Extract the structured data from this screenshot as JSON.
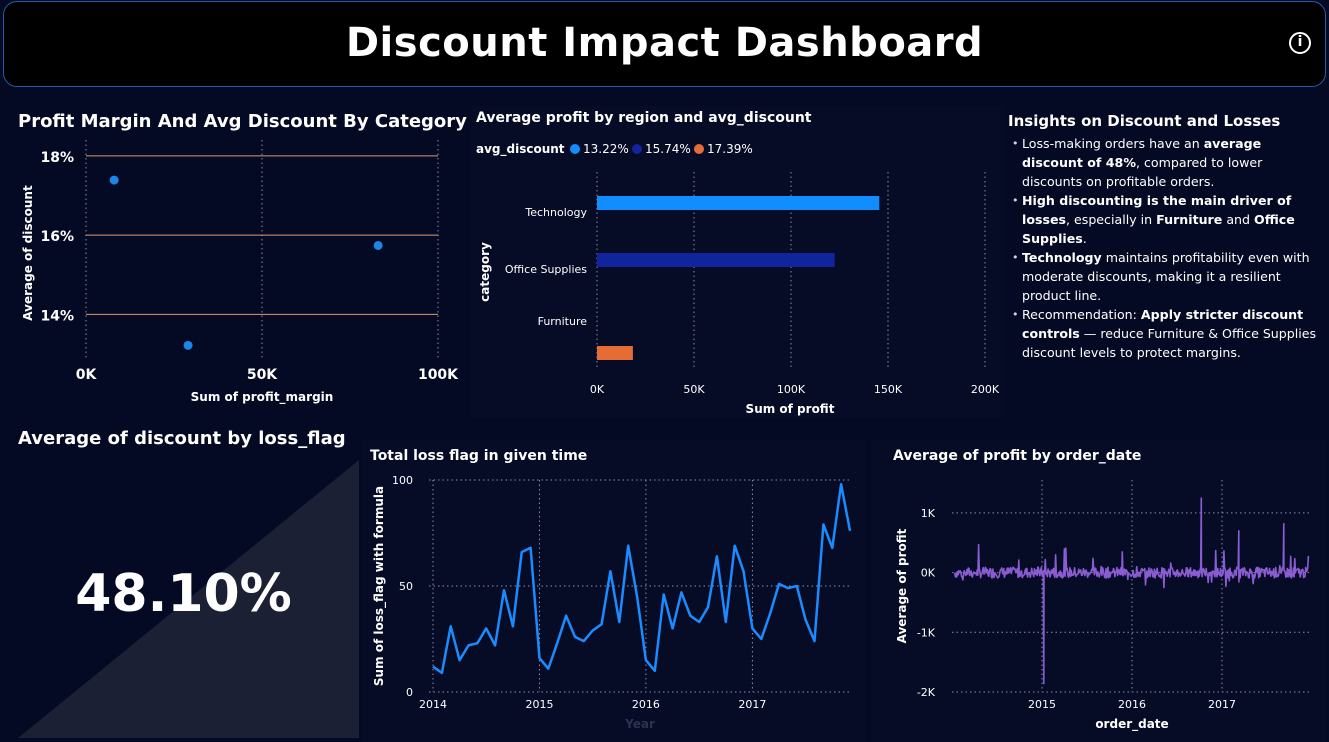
{
  "header": {
    "title": "Discount Impact Dashboard",
    "info_icon": "info-icon"
  },
  "scatter_panel": {
    "title": "Profit Margin And Avg Discount By Category",
    "chart_data": {
      "type": "scatter",
      "title": "Profit Margin And Avg Discount By Category",
      "xlabel": "Sum of profit_margin",
      "ylabel": "Average of discount",
      "x_ticks": [
        "0K",
        "50K",
        "100K"
      ],
      "y_ticks": [
        "18%",
        "16%",
        "14%"
      ],
      "xlim": [
        0,
        100000
      ],
      "ylim": [
        12.9,
        18.2
      ],
      "points": [
        {
          "x": 8000,
          "y": 17.39
        },
        {
          "x": 29000,
          "y": 13.22
        },
        {
          "x": 83000,
          "y": 15.74
        }
      ],
      "color": "#1a86e8"
    }
  },
  "bar_panel": {
    "title": "Average profit by region and avg_discount",
    "chart_data": {
      "type": "bar",
      "orientation": "horizontal",
      "title": "Average profit by region and avg_discount",
      "legend_title": "avg_discount",
      "legend": [
        {
          "label": "13.22%",
          "color": "#118dff"
        },
        {
          "label": "15.74%",
          "color": "#12239e"
        },
        {
          "label": "17.39%",
          "color": "#e66c37"
        }
      ],
      "categories": [
        "Technology",
        "Office Supplies",
        "Furniture"
      ],
      "values": [
        145500,
        122500,
        18500
      ],
      "colors": [
        "#118dff",
        "#12239e",
        "#e66c37"
      ],
      "xlabel": "Sum of profit",
      "ylabel": "category",
      "x_ticks": [
        "0K",
        "50K",
        "100K",
        "150K",
        "200K"
      ],
      "xlim": [
        0,
        200000
      ]
    }
  },
  "insights": {
    "title": "Insights on Discount and Losses",
    "items": [
      {
        "pre": "Loss-making orders have an ",
        "b1": "average discount of 48%",
        "mid": ", compared to lower discounts on profitable orders.",
        "b2": "",
        "post": "",
        "b3": "",
        "end": ""
      },
      {
        "pre": "",
        "b1": "High discounting is the main driver of losses",
        "mid": ", especially in ",
        "b2": "Furniture",
        "post": " and ",
        "b3": "Office Supplies",
        "end": "."
      },
      {
        "pre": "",
        "b1": "Technology",
        "mid": " maintains profitability even with moderate discounts, making it a resilient product line.",
        "b2": "",
        "post": "",
        "b3": "",
        "end": ""
      },
      {
        "pre": "Recommendation: ",
        "b1": "Apply stricter discount controls",
        "mid": " — reduce Furniture & Office Supplies discount levels to protect margins.",
        "b2": "",
        "post": "",
        "b3": "",
        "end": ""
      }
    ]
  },
  "kpi": {
    "title": "Average of discount by loss_flag",
    "value": "48.10%"
  },
  "loss_panel": {
    "title": "Total loss flag in given time",
    "chart_data": {
      "type": "line",
      "title": "Total loss flag in given time",
      "xlabel": "Year",
      "ylabel": "Sum of loss_flag with formula",
      "x_ticks": [
        "2014",
        "2015",
        "2016",
        "2017"
      ],
      "y_ticks": [
        "100",
        "50",
        "0"
      ],
      "ylim": [
        0,
        100
      ],
      "months": 48,
      "values": [
        12,
        9,
        31,
        15,
        22,
        23,
        30,
        22,
        48,
        31,
        66,
        68,
        16,
        11,
        23,
        36,
        26,
        24,
        29,
        32,
        57,
        33,
        69,
        45,
        15,
        10,
        46,
        30,
        47,
        36,
        33,
        40,
        64,
        33,
        69,
        57,
        30,
        25,
        37,
        51,
        49,
        50,
        34,
        24,
        79,
        68,
        98,
        76
      ],
      "color": "#1a8cff"
    }
  },
  "profit_panel": {
    "title": "Average of profit by order_date",
    "chart_data": {
      "type": "line",
      "title": "Average of profit by order_date",
      "xlabel": "order_date",
      "ylabel": "Average of profit",
      "x_ticks": [
        "2015",
        "2016",
        "2017"
      ],
      "y_ticks": [
        "1K",
        "0K",
        "-1K",
        "-2K"
      ],
      "ylim": [
        -2000,
        1300
      ],
      "notable_points": [
        {
          "date": "2015-01",
          "value": -1860
        },
        {
          "date": "2016-10",
          "value": 1250
        },
        {
          "date": "2017-09",
          "value": 820
        },
        {
          "date": "2017-03",
          "value": 700
        }
      ],
      "color": "#8a5cd1"
    }
  }
}
